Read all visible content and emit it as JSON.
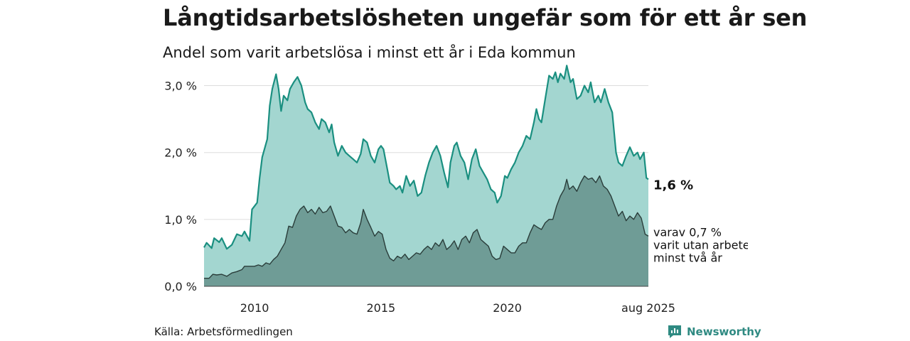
{
  "header": {
    "title": "Långtidsarbetslösheten ungefär som för ett år sen",
    "subtitle": "Andel som varit arbetslösa i minst ett år i Eda kommun"
  },
  "footer": {
    "source": "Källa: Arbetsförmedlingen",
    "brand": "Newsworthy"
  },
  "colors": {
    "total_fill": "#a3d6d0",
    "total_line": "#1a8f80",
    "longterm_fill": "#6f9c96",
    "longterm_line": "#2a3d3a",
    "grid": "#dddddd"
  },
  "chart_data": {
    "type": "area",
    "ylim": [
      0,
      3.25
    ],
    "yticks": [
      0,
      1,
      2,
      3
    ],
    "ytick_labels": [
      "0,0 %",
      "1,0 %",
      "2,0 %",
      "3,0 %"
    ],
    "xticks": [
      2010,
      2015,
      2020,
      2025.58
    ],
    "xtick_labels": [
      "2010",
      "2015",
      "2020",
      "aug 2025"
    ],
    "grid": true,
    "series": [
      {
        "key": "total",
        "points": [
          [
            2008.0,
            0.58
          ],
          [
            2008.1,
            0.65
          ],
          [
            2008.3,
            0.57
          ],
          [
            2008.4,
            0.72
          ],
          [
            2008.6,
            0.66
          ],
          [
            2008.7,
            0.72
          ],
          [
            2008.9,
            0.56
          ],
          [
            2009.1,
            0.62
          ],
          [
            2009.3,
            0.78
          ],
          [
            2009.5,
            0.75
          ],
          [
            2009.6,
            0.82
          ],
          [
            2009.8,
            0.68
          ],
          [
            2009.9,
            1.15
          ],
          [
            2010.1,
            1.25
          ],
          [
            2010.2,
            1.62
          ],
          [
            2010.3,
            1.93
          ],
          [
            2010.5,
            2.2
          ],
          [
            2010.6,
            2.7
          ],
          [
            2010.7,
            2.95
          ],
          [
            2010.85,
            3.17
          ],
          [
            2010.95,
            2.95
          ],
          [
            2011.05,
            2.62
          ],
          [
            2011.15,
            2.85
          ],
          [
            2011.3,
            2.78
          ],
          [
            2011.4,
            2.95
          ],
          [
            2011.55,
            3.05
          ],
          [
            2011.7,
            3.13
          ],
          [
            2011.85,
            3.0
          ],
          [
            2012.0,
            2.75
          ],
          [
            2012.1,
            2.65
          ],
          [
            2012.25,
            2.6
          ],
          [
            2012.4,
            2.45
          ],
          [
            2012.55,
            2.35
          ],
          [
            2012.65,
            2.5
          ],
          [
            2012.8,
            2.45
          ],
          [
            2012.95,
            2.3
          ],
          [
            2013.05,
            2.42
          ],
          [
            2013.15,
            2.15
          ],
          [
            2013.3,
            1.95
          ],
          [
            2013.45,
            2.1
          ],
          [
            2013.6,
            2.0
          ],
          [
            2013.75,
            1.95
          ],
          [
            2013.9,
            1.9
          ],
          [
            2014.05,
            1.85
          ],
          [
            2014.2,
            1.98
          ],
          [
            2014.3,
            2.2
          ],
          [
            2014.45,
            2.15
          ],
          [
            2014.6,
            1.95
          ],
          [
            2014.75,
            1.85
          ],
          [
            2014.9,
            2.05
          ],
          [
            2015.0,
            2.1
          ],
          [
            2015.1,
            2.05
          ],
          [
            2015.25,
            1.75
          ],
          [
            2015.35,
            1.55
          ],
          [
            2015.5,
            1.5
          ],
          [
            2015.6,
            1.45
          ],
          [
            2015.75,
            1.5
          ],
          [
            2015.85,
            1.4
          ],
          [
            2016.0,
            1.65
          ],
          [
            2016.15,
            1.5
          ],
          [
            2016.3,
            1.58
          ],
          [
            2016.45,
            1.35
          ],
          [
            2016.6,
            1.4
          ],
          [
            2016.75,
            1.65
          ],
          [
            2016.9,
            1.85
          ],
          [
            2017.05,
            2.0
          ],
          [
            2017.2,
            2.1
          ],
          [
            2017.35,
            1.95
          ],
          [
            2017.5,
            1.7
          ],
          [
            2017.65,
            1.48
          ],
          [
            2017.75,
            1.85
          ],
          [
            2017.9,
            2.1
          ],
          [
            2018.0,
            2.15
          ],
          [
            2018.15,
            1.95
          ],
          [
            2018.3,
            1.85
          ],
          [
            2018.45,
            1.6
          ],
          [
            2018.6,
            1.9
          ],
          [
            2018.75,
            2.05
          ],
          [
            2018.9,
            1.8
          ],
          [
            2019.05,
            1.7
          ],
          [
            2019.2,
            1.6
          ],
          [
            2019.35,
            1.45
          ],
          [
            2019.5,
            1.4
          ],
          [
            2019.6,
            1.25
          ],
          [
            2019.75,
            1.35
          ],
          [
            2019.9,
            1.65
          ],
          [
            2020.0,
            1.62
          ],
          [
            2020.15,
            1.75
          ],
          [
            2020.3,
            1.85
          ],
          [
            2020.45,
            2.0
          ],
          [
            2020.6,
            2.1
          ],
          [
            2020.75,
            2.25
          ],
          [
            2020.9,
            2.2
          ],
          [
            2021.05,
            2.45
          ],
          [
            2021.15,
            2.65
          ],
          [
            2021.25,
            2.5
          ],
          [
            2021.35,
            2.45
          ],
          [
            2021.5,
            2.8
          ],
          [
            2021.65,
            3.15
          ],
          [
            2021.8,
            3.1
          ],
          [
            2021.9,
            3.2
          ],
          [
            2022.0,
            3.05
          ],
          [
            2022.1,
            3.18
          ],
          [
            2022.25,
            3.1
          ],
          [
            2022.35,
            3.3
          ],
          [
            2022.5,
            3.05
          ],
          [
            2022.6,
            3.1
          ],
          [
            2022.75,
            2.8
          ],
          [
            2022.9,
            2.85
          ],
          [
            2023.05,
            3.0
          ],
          [
            2023.2,
            2.9
          ],
          [
            2023.3,
            3.05
          ],
          [
            2023.45,
            2.75
          ],
          [
            2023.6,
            2.85
          ],
          [
            2023.7,
            2.75
          ],
          [
            2023.85,
            2.95
          ],
          [
            2024.0,
            2.75
          ],
          [
            2024.15,
            2.6
          ],
          [
            2024.3,
            2.0
          ],
          [
            2024.4,
            1.85
          ],
          [
            2024.55,
            1.8
          ],
          [
            2024.7,
            1.95
          ],
          [
            2024.85,
            2.08
          ],
          [
            2025.0,
            1.95
          ],
          [
            2025.15,
            2.0
          ],
          [
            2025.25,
            1.9
          ],
          [
            2025.4,
            2.0
          ],
          [
            2025.5,
            1.62
          ],
          [
            2025.58,
            1.6
          ]
        ]
      },
      {
        "key": "longterm",
        "points": [
          [
            2008.0,
            0.12
          ],
          [
            2008.2,
            0.12
          ],
          [
            2008.35,
            0.18
          ],
          [
            2008.5,
            0.17
          ],
          [
            2008.7,
            0.18
          ],
          [
            2008.9,
            0.15
          ],
          [
            2009.1,
            0.2
          ],
          [
            2009.3,
            0.22
          ],
          [
            2009.5,
            0.25
          ],
          [
            2009.6,
            0.3
          ],
          [
            2009.8,
            0.3
          ],
          [
            2010.0,
            0.3
          ],
          [
            2010.15,
            0.32
          ],
          [
            2010.3,
            0.3
          ],
          [
            2010.45,
            0.35
          ],
          [
            2010.6,
            0.33
          ],
          [
            2010.75,
            0.4
          ],
          [
            2010.9,
            0.45
          ],
          [
            2011.05,
            0.55
          ],
          [
            2011.2,
            0.65
          ],
          [
            2011.35,
            0.9
          ],
          [
            2011.5,
            0.88
          ],
          [
            2011.65,
            1.05
          ],
          [
            2011.8,
            1.15
          ],
          [
            2011.95,
            1.2
          ],
          [
            2012.1,
            1.1
          ],
          [
            2012.25,
            1.15
          ],
          [
            2012.4,
            1.08
          ],
          [
            2012.55,
            1.18
          ],
          [
            2012.7,
            1.1
          ],
          [
            2012.85,
            1.12
          ],
          [
            2013.0,
            1.2
          ],
          [
            2013.15,
            1.05
          ],
          [
            2013.3,
            0.9
          ],
          [
            2013.45,
            0.88
          ],
          [
            2013.6,
            0.8
          ],
          [
            2013.75,
            0.85
          ],
          [
            2013.9,
            0.8
          ],
          [
            2014.05,
            0.78
          ],
          [
            2014.2,
            0.95
          ],
          [
            2014.3,
            1.15
          ],
          [
            2014.45,
            1.0
          ],
          [
            2014.6,
            0.88
          ],
          [
            2014.75,
            0.75
          ],
          [
            2014.9,
            0.82
          ],
          [
            2015.05,
            0.78
          ],
          [
            2015.2,
            0.55
          ],
          [
            2015.35,
            0.42
          ],
          [
            2015.5,
            0.38
          ],
          [
            2015.65,
            0.45
          ],
          [
            2015.8,
            0.42
          ],
          [
            2015.95,
            0.48
          ],
          [
            2016.1,
            0.4
          ],
          [
            2016.25,
            0.45
          ],
          [
            2016.4,
            0.5
          ],
          [
            2016.55,
            0.48
          ],
          [
            2016.7,
            0.55
          ],
          [
            2016.85,
            0.6
          ],
          [
            2017.0,
            0.55
          ],
          [
            2017.15,
            0.65
          ],
          [
            2017.3,
            0.6
          ],
          [
            2017.45,
            0.7
          ],
          [
            2017.6,
            0.55
          ],
          [
            2017.75,
            0.6
          ],
          [
            2017.9,
            0.68
          ],
          [
            2018.05,
            0.55
          ],
          [
            2018.2,
            0.7
          ],
          [
            2018.35,
            0.75
          ],
          [
            2018.5,
            0.65
          ],
          [
            2018.65,
            0.8
          ],
          [
            2018.8,
            0.85
          ],
          [
            2018.95,
            0.7
          ],
          [
            2019.1,
            0.65
          ],
          [
            2019.25,
            0.6
          ],
          [
            2019.4,
            0.45
          ],
          [
            2019.55,
            0.4
          ],
          [
            2019.7,
            0.42
          ],
          [
            2019.85,
            0.6
          ],
          [
            2020.0,
            0.55
          ],
          [
            2020.15,
            0.5
          ],
          [
            2020.3,
            0.5
          ],
          [
            2020.45,
            0.6
          ],
          [
            2020.6,
            0.65
          ],
          [
            2020.75,
            0.65
          ],
          [
            2020.9,
            0.8
          ],
          [
            2021.05,
            0.92
          ],
          [
            2021.2,
            0.88
          ],
          [
            2021.35,
            0.85
          ],
          [
            2021.5,
            0.95
          ],
          [
            2021.65,
            1.0
          ],
          [
            2021.8,
            1.0
          ],
          [
            2021.95,
            1.2
          ],
          [
            2022.1,
            1.35
          ],
          [
            2022.25,
            1.45
          ],
          [
            2022.35,
            1.6
          ],
          [
            2022.45,
            1.45
          ],
          [
            2022.6,
            1.5
          ],
          [
            2022.75,
            1.42
          ],
          [
            2022.9,
            1.55
          ],
          [
            2023.05,
            1.65
          ],
          [
            2023.2,
            1.6
          ],
          [
            2023.35,
            1.62
          ],
          [
            2023.5,
            1.55
          ],
          [
            2023.65,
            1.65
          ],
          [
            2023.8,
            1.5
          ],
          [
            2023.95,
            1.45
          ],
          [
            2024.1,
            1.35
          ],
          [
            2024.25,
            1.2
          ],
          [
            2024.4,
            1.05
          ],
          [
            2024.55,
            1.12
          ],
          [
            2024.7,
            0.98
          ],
          [
            2024.85,
            1.05
          ],
          [
            2025.0,
            1.0
          ],
          [
            2025.15,
            1.1
          ],
          [
            2025.3,
            1.02
          ],
          [
            2025.45,
            0.78
          ],
          [
            2025.58,
            0.75
          ]
        ]
      }
    ],
    "annotations": [
      {
        "key": "total_end",
        "text": "1,6 %",
        "bold": true
      },
      {
        "key": "longterm_end",
        "lines": [
          "varav 0,7 %",
          "varit utan arbete",
          "minst två år"
        ]
      }
    ]
  }
}
